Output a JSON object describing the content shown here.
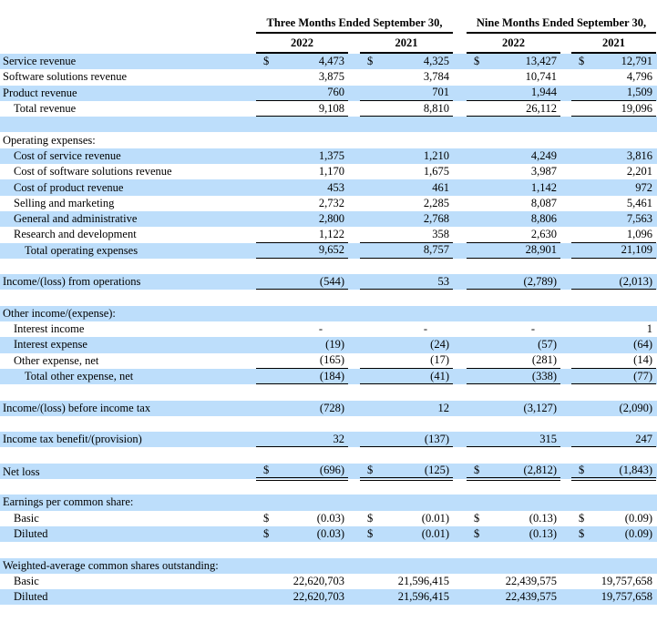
{
  "colors": {
    "row_highlight": "#bddefb",
    "border": "#000000",
    "text": "#000000"
  },
  "table": {
    "currency_symbol": "$",
    "header": {
      "groups": [
        "Three Months Ended September 30,",
        "Nine Months Ended September 30,"
      ],
      "years": [
        "2022",
        "2021",
        "2022",
        "2021"
      ]
    },
    "rows": [
      {
        "type": "data",
        "label": "Service revenue",
        "indent": 0,
        "bg": "blue",
        "dollar": true,
        "border": "none",
        "values": [
          "4,473",
          "4,325",
          "13,427",
          "12,791"
        ]
      },
      {
        "type": "data",
        "label": "Software solutions revenue",
        "indent": 0,
        "bg": "white",
        "dollar": false,
        "border": "none",
        "values": [
          "3,875",
          "3,784",
          "10,741",
          "4,796"
        ]
      },
      {
        "type": "data",
        "label": "Product revenue",
        "indent": 0,
        "bg": "blue",
        "dollar": false,
        "border": "bottom",
        "values": [
          "760",
          "701",
          "1,944",
          "1,509"
        ]
      },
      {
        "type": "data",
        "label": "Total revenue",
        "indent": 1,
        "bg": "white",
        "dollar": false,
        "border": "bottom",
        "values": [
          "9,108",
          "8,810",
          "26,112",
          "19,096"
        ]
      },
      {
        "type": "blank",
        "bg": "blue"
      },
      {
        "type": "section",
        "label": "Operating expenses:",
        "indent": 0,
        "bg": "white"
      },
      {
        "type": "data",
        "label": "Cost of service revenue",
        "indent": 1,
        "bg": "blue",
        "dollar": false,
        "border": "none",
        "values": [
          "1,375",
          "1,210",
          "4,249",
          "3,816"
        ]
      },
      {
        "type": "data",
        "label": "Cost of software solutions revenue",
        "indent": 1,
        "bg": "white",
        "dollar": false,
        "border": "none",
        "values": [
          "1,170",
          "1,675",
          "3,987",
          "2,201"
        ]
      },
      {
        "type": "data",
        "label": "Cost of product revenue",
        "indent": 1,
        "bg": "blue",
        "dollar": false,
        "border": "none",
        "values": [
          "453",
          "461",
          "1,142",
          "972"
        ]
      },
      {
        "type": "data",
        "label": "Selling and marketing",
        "indent": 1,
        "bg": "white",
        "dollar": false,
        "border": "none",
        "values": [
          "2,732",
          "2,285",
          "8,087",
          "5,461"
        ]
      },
      {
        "type": "data",
        "label": "General and administrative",
        "indent": 1,
        "bg": "blue",
        "dollar": false,
        "border": "none",
        "values": [
          "2,800",
          "2,768",
          "8,806",
          "7,563"
        ]
      },
      {
        "type": "data",
        "label": "Research and development",
        "indent": 1,
        "bg": "white",
        "dollar": false,
        "border": "bottom",
        "values": [
          "1,122",
          "358",
          "2,630",
          "1,096"
        ]
      },
      {
        "type": "data",
        "label": "Total operating expenses",
        "indent": 2,
        "bg": "blue",
        "dollar": false,
        "border": "bottom",
        "values": [
          "9,652",
          "8,757",
          "28,901",
          "21,109"
        ]
      },
      {
        "type": "blank",
        "bg": "white"
      },
      {
        "type": "data",
        "label": "Income/(loss) from operations",
        "indent": 0,
        "bg": "blue",
        "dollar": false,
        "border": "bottom",
        "values": [
          "(544)",
          "53",
          "(2,789)",
          "(2,013)"
        ]
      },
      {
        "type": "blank",
        "bg": "white"
      },
      {
        "type": "section",
        "label": "Other income/(expense):",
        "indent": 0,
        "bg": "blue"
      },
      {
        "type": "data",
        "label": "Interest income",
        "indent": 1,
        "bg": "white",
        "dollar": false,
        "border": "none",
        "values": [
          "-",
          "-",
          "-",
          "1"
        ]
      },
      {
        "type": "data",
        "label": "Interest expense",
        "indent": 1,
        "bg": "blue",
        "dollar": false,
        "border": "none",
        "values": [
          "(19)",
          "(24)",
          "(57)",
          "(64)"
        ]
      },
      {
        "type": "data",
        "label": "Other expense, net",
        "indent": 1,
        "bg": "white",
        "dollar": false,
        "border": "bottom",
        "values": [
          "(165)",
          "(17)",
          "(281)",
          "(14)"
        ]
      },
      {
        "type": "data",
        "label": "Total other expense, net",
        "indent": 2,
        "bg": "blue",
        "dollar": false,
        "border": "bottom",
        "values": [
          "(184)",
          "(41)",
          "(338)",
          "(77)"
        ]
      },
      {
        "type": "blank",
        "bg": "white"
      },
      {
        "type": "data",
        "label": "Income/(loss) before income tax",
        "indent": 0,
        "bg": "blue",
        "dollar": false,
        "border": "none",
        "values": [
          "(728)",
          "12",
          "(3,127)",
          "(2,090)"
        ]
      },
      {
        "type": "blank",
        "bg": "white"
      },
      {
        "type": "data",
        "label": "Income tax benefit/(provision)",
        "indent": 0,
        "bg": "blue",
        "dollar": false,
        "border": "bottom",
        "values": [
          "32",
          "(137)",
          "315",
          "247"
        ]
      },
      {
        "type": "blank",
        "bg": "white"
      },
      {
        "type": "data",
        "label": "Net loss",
        "indent": 0,
        "bg": "blue",
        "dollar": true,
        "border": "double",
        "values": [
          "(696)",
          "(125)",
          "(2,812)",
          "(1,843)"
        ]
      },
      {
        "type": "blank",
        "bg": "white"
      },
      {
        "type": "section",
        "label": "Earnings per common share:",
        "indent": 0,
        "bg": "blue"
      },
      {
        "type": "data",
        "label": "Basic",
        "indent": 1,
        "bg": "white",
        "dollar": true,
        "border": "none",
        "values": [
          "(0.03)",
          "(0.01)",
          "(0.13)",
          "(0.09)"
        ]
      },
      {
        "type": "data",
        "label": "Diluted",
        "indent": 1,
        "bg": "blue",
        "dollar": true,
        "border": "none",
        "values": [
          "(0.03)",
          "(0.01)",
          "(0.13)",
          "(0.09)"
        ]
      },
      {
        "type": "blank",
        "bg": "white"
      },
      {
        "type": "section",
        "label": "Weighted-average common shares outstanding:",
        "indent": 0,
        "bg": "blue"
      },
      {
        "type": "data",
        "label": "Basic",
        "indent": 1,
        "bg": "white",
        "dollar": false,
        "border": "none",
        "values": [
          "22,620,703",
          "21,596,415",
          "22,439,575",
          "19,757,658"
        ]
      },
      {
        "type": "data",
        "label": "Diluted",
        "indent": 1,
        "bg": "blue",
        "dollar": false,
        "border": "none",
        "values": [
          "22,620,703",
          "21,596,415",
          "22,439,575",
          "19,757,658"
        ]
      }
    ]
  }
}
